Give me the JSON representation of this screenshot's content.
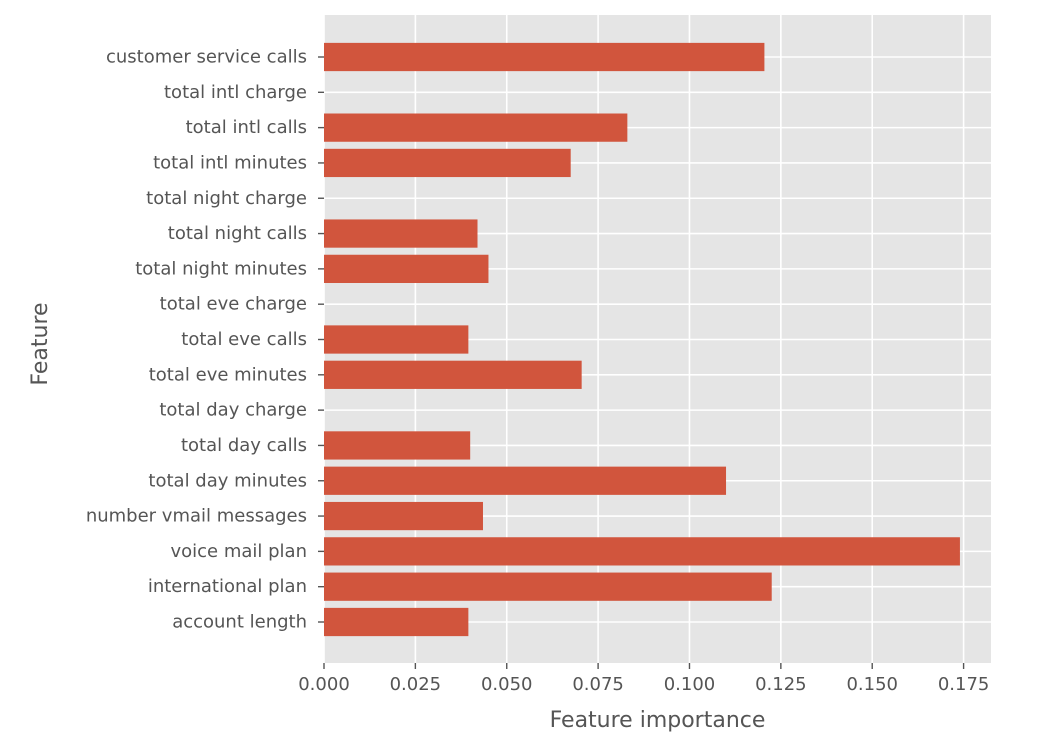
{
  "chart_data": {
    "type": "bar",
    "orientation": "horizontal",
    "title": "",
    "xlabel": "Feature importance",
    "ylabel": "Feature",
    "categories": [
      "account length",
      "international plan",
      "voice mail plan",
      "number vmail messages",
      "total day minutes",
      "total day calls",
      "total day charge",
      "total eve minutes",
      "total eve calls",
      "total eve charge",
      "total night minutes",
      "total night calls",
      "total night charge",
      "total intl minutes",
      "total intl calls",
      "total intl charge",
      "customer service calls"
    ],
    "values": [
      0.0395,
      0.1225,
      0.174,
      0.0435,
      0.11,
      0.04,
      0.0,
      0.0705,
      0.0395,
      0.0,
      0.045,
      0.042,
      0.0,
      0.0675,
      0.083,
      0.0,
      0.1205
    ],
    "xlim": [
      0.0,
      0.1825
    ],
    "xticks": [
      0.0,
      0.025,
      0.05,
      0.075,
      0.1,
      0.125,
      0.15,
      0.175
    ],
    "xtick_labels": [
      "0.000",
      "0.025",
      "0.050",
      "0.075",
      "0.100",
      "0.125",
      "0.150",
      "0.175"
    ],
    "grid": true,
    "style": "ggplot",
    "colors": {
      "bar": "#d1553d",
      "plot_background": "#e5e5e5",
      "grid": "#ffffff",
      "text": "#555555"
    }
  }
}
